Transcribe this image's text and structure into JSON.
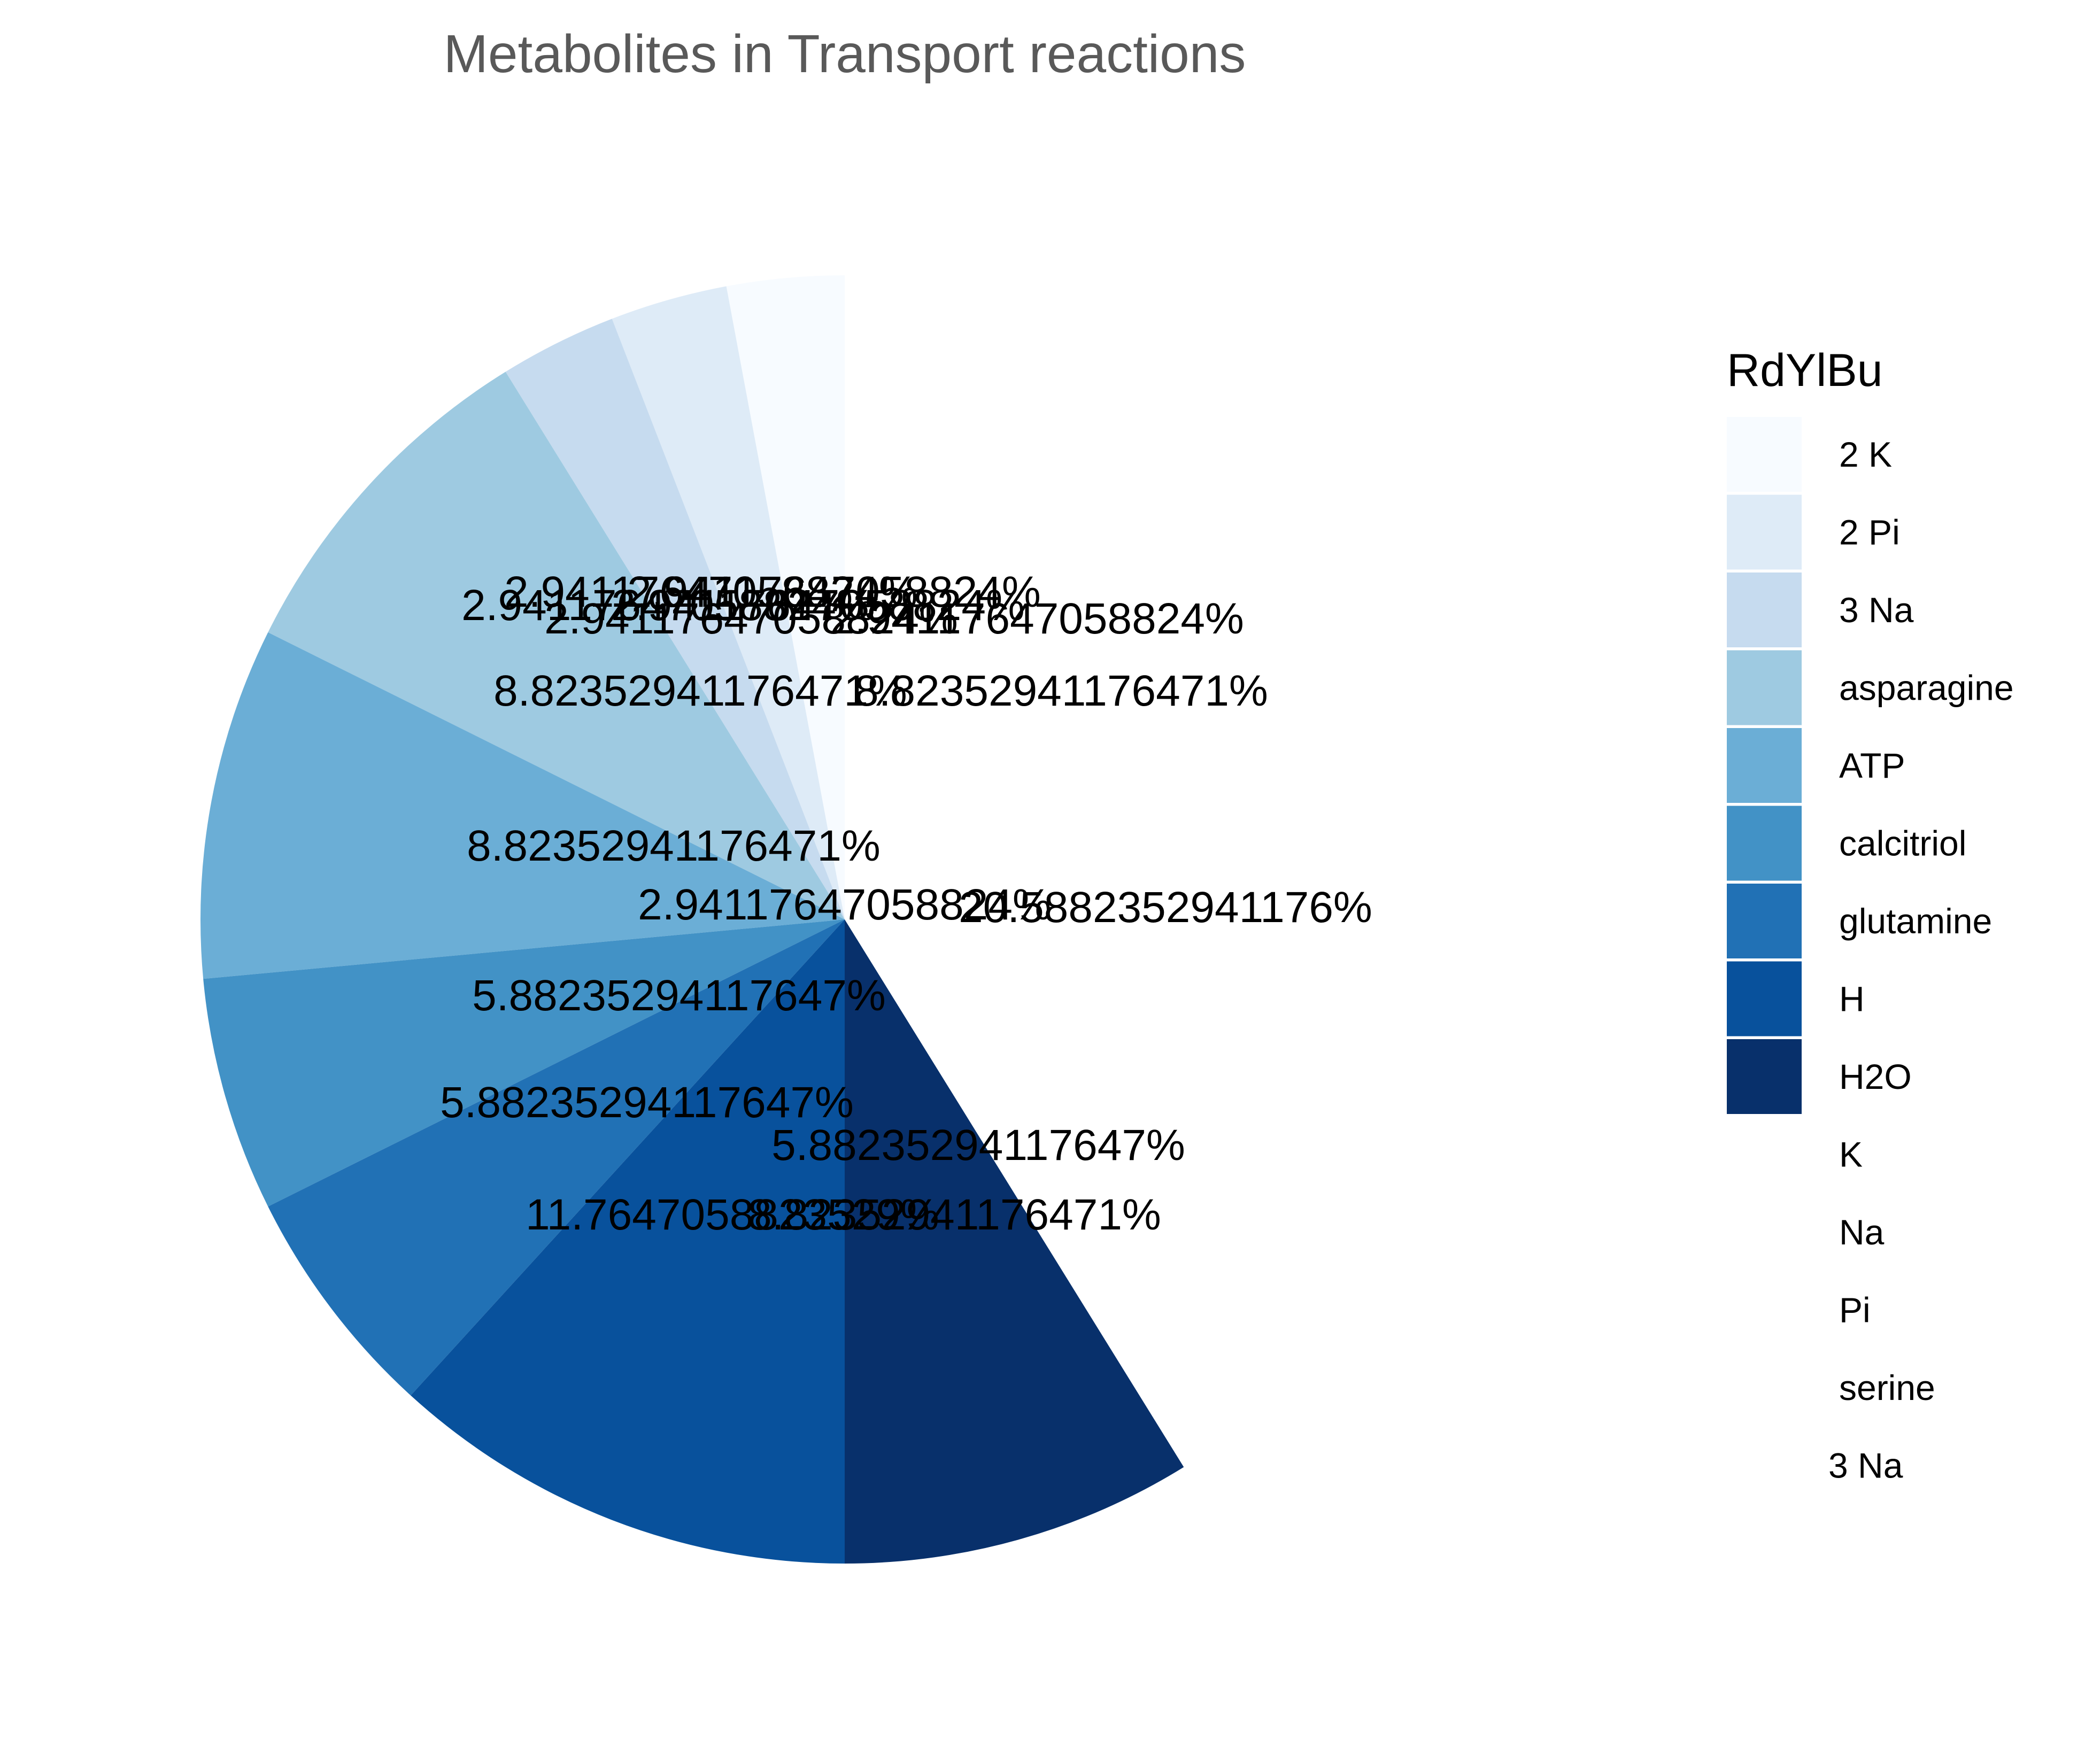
{
  "chart_data": {
    "type": "pie",
    "title": "Metabolites in Transport reactions",
    "legend_title": "RdYlBu",
    "legend_position": "right",
    "slices": [
      {
        "name": "2 K",
        "value": 2.94117647058824,
        "label": "2.94117647058824%",
        "color": "#f7fbff"
      },
      {
        "name": "2 Pi",
        "value": 2.94117647058824,
        "label": "2.94117647058824%",
        "color": "#deebf7"
      },
      {
        "name": "3 Na",
        "value": 2.94117647058824,
        "label": "2.94117647058824%",
        "color": "#c6dbef"
      },
      {
        "name": "asparagine",
        "value": 8.82352941176471,
        "label": "8.82352941176471%",
        "color": "#9ecae1"
      },
      {
        "name": "ATP",
        "value": 8.82352941176471,
        "label": "8.82352941176471%",
        "color": "#6baed6"
      },
      {
        "name": "calcitriol",
        "value": 5.88235294117647,
        "label": "5.88235294117647%",
        "color": "#4292c6"
      },
      {
        "name": "glutamine",
        "value": 5.88235294117647,
        "label": "5.88235294117647%",
        "color": "#2171b5"
      },
      {
        "name": "H",
        "value": 11.7647058823529,
        "label": "11.7647058823529%",
        "color": "#08519c"
      },
      {
        "name": "H2O",
        "value": 8.82352941176471,
        "label": "8.82352941176471%",
        "color": "#08306b"
      },
      {
        "name": "K",
        "value": 5.88235294117647,
        "label": "5.88235294117647%",
        "color": "#ffffff"
      },
      {
        "name": "Na",
        "value": 20.5882352941176,
        "label": "20.5882352941176%",
        "color": "#ffffff"
      },
      {
        "name": "Pi",
        "value": 2.94117647058824,
        "label": "2.94117647058824%",
        "color": "#ffffff"
      },
      {
        "name": "serine",
        "value": 8.82352941176471,
        "label": "8.82352941176471%",
        "color": "#ffffff"
      },
      {
        "name": "3 Na",
        "value": 2.94117647058824,
        "label": "2.94117647058824%",
        "color": "#ffffff"
      }
    ],
    "extra_labels": [
      "2.94117647058824%",
      "2.94117647058824%"
    ]
  }
}
